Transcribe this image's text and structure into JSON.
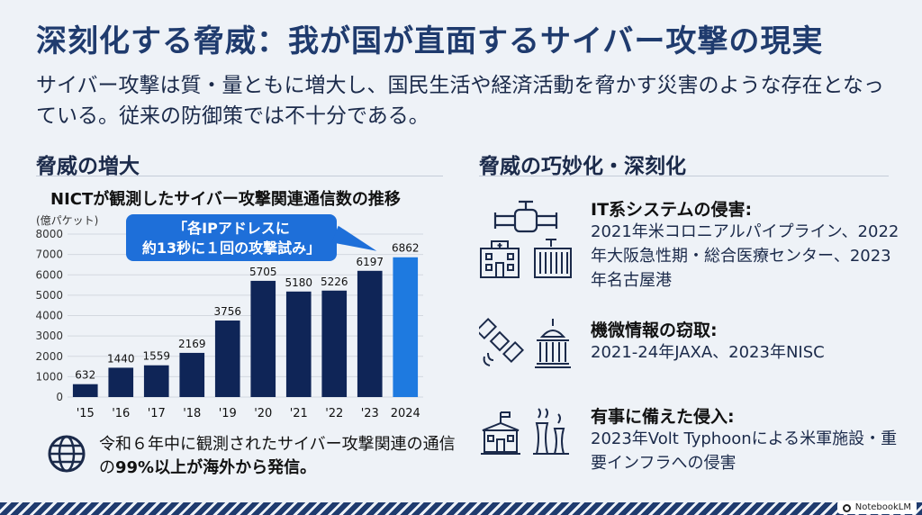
{
  "title": "深刻化する脅威：我が国が直面するサイバー攻撃の現実",
  "subtitle": "サイバー攻撃は質・量ともに増大し、国民生活や経済活動を脅かす災害のような存在となっている。従来の防御策では不十分である。",
  "left_section": {
    "heading": "脅威の増大",
    "chart_title": "NICTが観測したサイバー攻撃関連通信数の推移",
    "unit": "(億パケット)",
    "callout": [
      "「各IPアドレスに",
      "約13秒に１回の攻撃試み」"
    ],
    "note_prefix": "令和６年中に観測されたサイバー攻撃関連の通信の",
    "note_bold": "99%以上が海外から発信。"
  },
  "chart_data": {
    "type": "bar",
    "categories": [
      "'15",
      "'16",
      "'17",
      "'18",
      "'19",
      "'20",
      "'21",
      "'22",
      "'23",
      "2024"
    ],
    "values": [
      632,
      1440,
      1559,
      2169,
      3756,
      5705,
      5180,
      5226,
      6197,
      6862
    ],
    "title": "NICTが観測したサイバー攻撃関連通信数の推移",
    "ylabel": "(億パケット)",
    "ylim": [
      0,
      8000
    ],
    "yticks": [
      0,
      1000,
      2000,
      3000,
      4000,
      5000,
      6000,
      7000,
      8000
    ],
    "grid": true,
    "colors": {
      "bar": "#0f2557",
      "highlight": "#1e7ae0",
      "grid": "#d3d8e0"
    },
    "highlight_index": 9
  },
  "right_section": {
    "heading": "脅威の巧妙化・深刻化",
    "items": [
      {
        "title": "IT系システムの侵害:",
        "text": "2021年米コロニアルパイプライン、2022年大阪急性期・総合医療センター、2023年名古屋港",
        "icons": [
          "pipeline-icon",
          "hospital-icon",
          "container-icon"
        ]
      },
      {
        "title": "機微情報の窃取:",
        "text": "2021-24年JAXA、2023年NISC",
        "icons": [
          "satellite-icon",
          "government-building-icon"
        ]
      },
      {
        "title": "有事に備えた侵入:",
        "text": "2023年Volt Typhoonによる米軍施設・重要インフラへの侵害",
        "icons": [
          "military-base-icon",
          "power-plant-icon"
        ]
      }
    ]
  },
  "brand": "NotebookLM",
  "colors": {
    "title": "#1f3b6e",
    "accent": "#1e6fd9",
    "background": "#eef2f7"
  }
}
